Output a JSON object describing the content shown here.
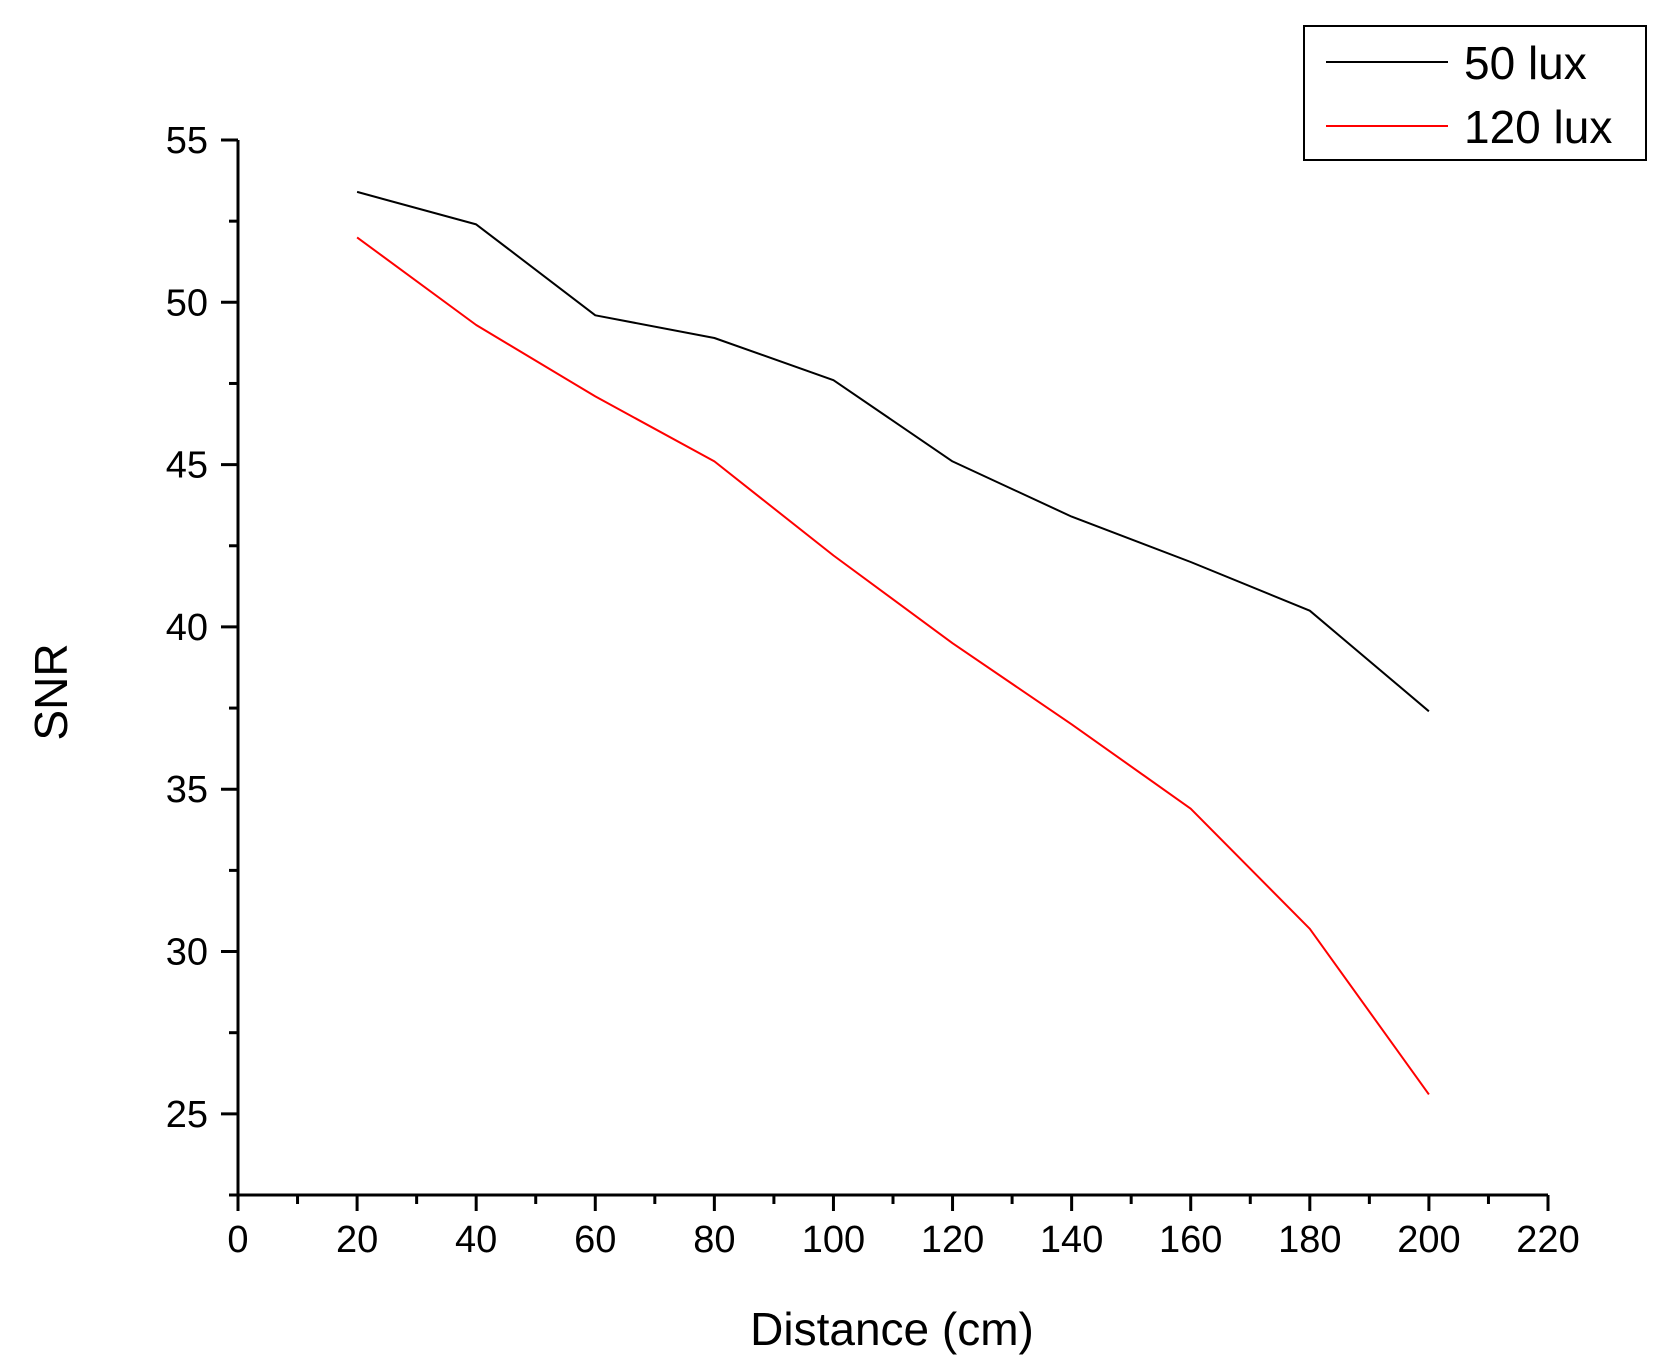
{
  "chart_data": {
    "type": "line",
    "title": "",
    "xlabel": "Distance (cm)",
    "ylabel": "SNR",
    "xlim": [
      0,
      220
    ],
    "ylim": [
      22.5,
      55
    ],
    "x_ticks": [
      0,
      20,
      40,
      60,
      80,
      100,
      120,
      140,
      160,
      180,
      200,
      220
    ],
    "x_minor_step": 10,
    "y_ticks": [
      25,
      30,
      35,
      40,
      45,
      50,
      55
    ],
    "y_minor_step": 2.5,
    "grid": false,
    "legend_position": "top-right",
    "x": [
      20,
      40,
      60,
      80,
      100,
      120,
      140,
      160,
      180,
      200
    ],
    "series": [
      {
        "name": "50 lux",
        "color": "#000000",
        "values": [
          53.4,
          52.4,
          49.6,
          48.9,
          47.6,
          45.1,
          43.4,
          42.0,
          40.5,
          37.4
        ]
      },
      {
        "name": "120 lux",
        "color": "#ff0000",
        "values": [
          52.0,
          49.3,
          47.1,
          45.1,
          42.2,
          39.5,
          37.0,
          34.4,
          30.7,
          25.6
        ]
      }
    ]
  }
}
